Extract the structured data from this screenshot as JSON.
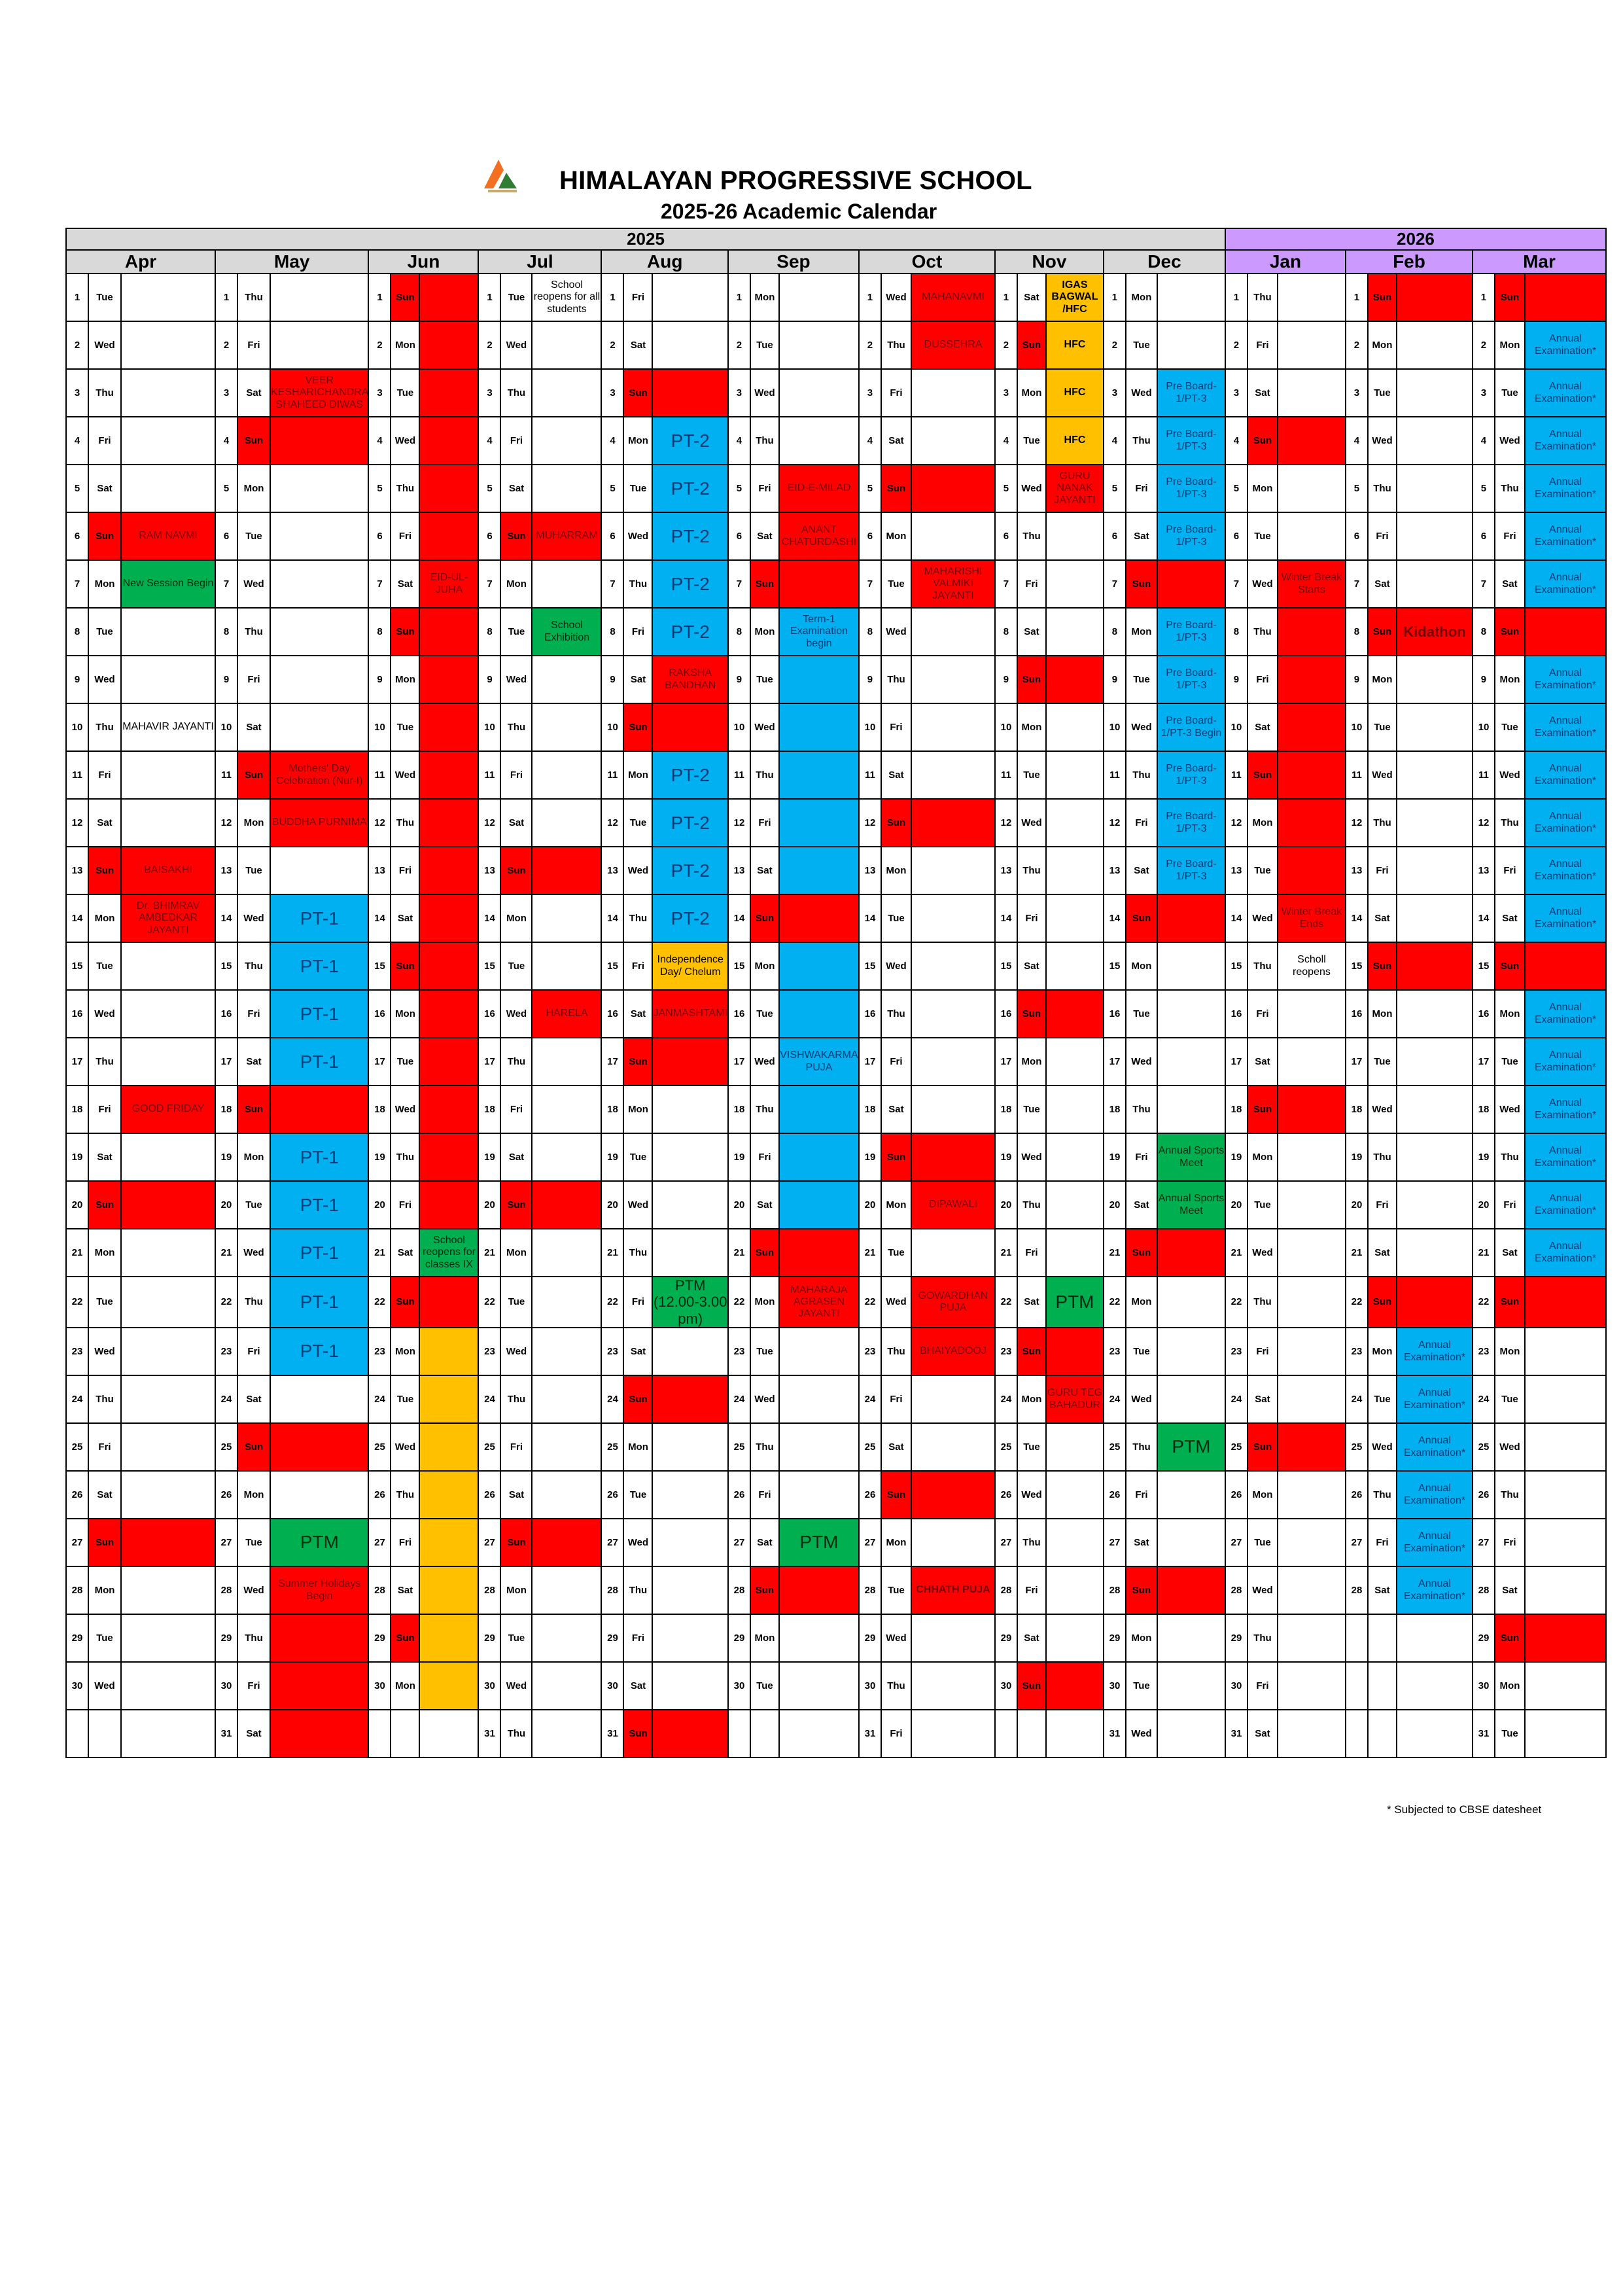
{
  "header": {
    "title": "HIMALAYAN PROGRESSIVE SCHOOL",
    "subtitle": "2025-26 Academic Calendar",
    "logo_icon": "school-logo-icon"
  },
  "colors": {
    "holiday_red": "#ff0000",
    "exam_blue": "#00b0f0",
    "event_green": "#00b050",
    "orange": "#ffc000",
    "header_grey": "#d9d9d9",
    "header_2026": "#cc99ff"
  },
  "years": [
    {
      "label": "2025",
      "months": 9
    },
    {
      "label": "2026",
      "months": 3
    }
  ],
  "months": [
    {
      "name": "Apr",
      "first_dow": 2,
      "days": 30,
      "events": {
        "6": {
          "t": "RAM NAVMI",
          "c": "red"
        },
        "7": {
          "t": "New Session Begin",
          "c": "green"
        },
        "10": {
          "t": "MAHAVIR JAYANTI",
          "c": ""
        },
        "13": {
          "t": "BAISAKHI",
          "c": "red"
        },
        "14": {
          "t": "Dr. BHIMRAV AMBEDKAR JAYANTI",
          "c": "red"
        },
        "18": {
          "t": "GOOD FRIDAY",
          "c": "red"
        },
        "20": {
          "t": "",
          "c": "red"
        },
        "27": {
          "t": "",
          "c": "red"
        }
      }
    },
    {
      "name": "May",
      "first_dow": 4,
      "days": 31,
      "events": {
        "3": {
          "t": "VEER KESHARICHANDRA SHAHEED DIWAS",
          "c": "red"
        },
        "4": {
          "t": "",
          "c": "red"
        },
        "11": {
          "t": "Mothers' Day Celebration (Nur-I)",
          "c": "red"
        },
        "12": {
          "t": "BUDDHA PURNIMA",
          "c": "red"
        },
        "14": {
          "t": "PT-1",
          "c": "blue",
          "big": true
        },
        "15": {
          "t": "PT-1",
          "c": "blue",
          "big": true
        },
        "16": {
          "t": "PT-1",
          "c": "blue",
          "big": true
        },
        "17": {
          "t": "PT-1",
          "c": "blue",
          "big": true
        },
        "18": {
          "t": "",
          "c": "red"
        },
        "19": {
          "t": "PT-1",
          "c": "blue",
          "big": true
        },
        "20": {
          "t": "PT-1",
          "c": "blue",
          "big": true
        },
        "21": {
          "t": "PT-1",
          "c": "blue",
          "big": true
        },
        "22": {
          "t": "PT-1",
          "c": "blue",
          "big": true
        },
        "23": {
          "t": "PT-1",
          "c": "blue",
          "big": true
        },
        "25": {
          "t": "",
          "c": "red"
        },
        "27": {
          "t": "PTM",
          "c": "green",
          "big": true
        },
        "28": {
          "t": "Summer Holidays Begin",
          "c": "red"
        },
        "29": {
          "t": "",
          "c": "red"
        },
        "30": {
          "t": "",
          "c": "red"
        },
        "31": {
          "t": "",
          "c": "red"
        }
      }
    },
    {
      "name": "Jun",
      "first_dow": 0,
      "days": 30,
      "events": {
        "1": {
          "t": "",
          "c": "red"
        },
        "2": {
          "t": "",
          "c": "red"
        },
        "3": {
          "t": "",
          "c": "red"
        },
        "4": {
          "t": "",
          "c": "red"
        },
        "5": {
          "t": "",
          "c": "red"
        },
        "6": {
          "t": "",
          "c": "red"
        },
        "7": {
          "t": "EID-UL-JUHA",
          "c": "red"
        },
        "8": {
          "t": "",
          "c": "red"
        },
        "9": {
          "t": "",
          "c": "red"
        },
        "10": {
          "t": "",
          "c": "red"
        },
        "11": {
          "t": "",
          "c": "red"
        },
        "12": {
          "t": "",
          "c": "red"
        },
        "13": {
          "t": "",
          "c": "red"
        },
        "14": {
          "t": "",
          "c": "red"
        },
        "15": {
          "t": "",
          "c": "red"
        },
        "16": {
          "t": "",
          "c": "red"
        },
        "17": {
          "t": "",
          "c": "red"
        },
        "18": {
          "t": "",
          "c": "red"
        },
        "19": {
          "t": "",
          "c": "red"
        },
        "20": {
          "t": "",
          "c": "red"
        },
        "21": {
          "t": "School reopens for classes IX",
          "c": "green"
        },
        "22": {
          "t": "",
          "c": "red"
        },
        "23": {
          "t": "",
          "c": "orange"
        },
        "24": {
          "t": "",
          "c": "orange"
        },
        "25": {
          "t": "",
          "c": "orange"
        },
        "26": {
          "t": "",
          "c": "orange"
        },
        "27": {
          "t": "",
          "c": "orange"
        },
        "28": {
          "t": "",
          "c": "orange"
        },
        "29": {
          "t": "",
          "c": "orange"
        },
        "30": {
          "t": "",
          "c": "orange"
        }
      }
    },
    {
      "name": "Jul",
      "first_dow": 2,
      "days": 31,
      "events": {
        "1": {
          "t": "School reopens for all students",
          "c": ""
        },
        "6": {
          "t": "MUHARRAM",
          "c": "red"
        },
        "8": {
          "t": "School Exhibition",
          "c": "green"
        },
        "13": {
          "t": "",
          "c": "red"
        },
        "16": {
          "t": "HARELA",
          "c": "red"
        },
        "20": {
          "t": "",
          "c": "red"
        },
        "27": {
          "t": "",
          "c": "red"
        }
      }
    },
    {
      "name": "Aug",
      "first_dow": 5,
      "days": 31,
      "events": {
        "3": {
          "t": "",
          "c": "red"
        },
        "4": {
          "t": "PT-2",
          "c": "blue",
          "big": true
        },
        "5": {
          "t": "PT-2",
          "c": "blue",
          "big": true
        },
        "6": {
          "t": "PT-2",
          "c": "blue",
          "big": true
        },
        "7": {
          "t": "PT-2",
          "c": "blue",
          "big": true
        },
        "8": {
          "t": "PT-2",
          "c": "blue",
          "big": true
        },
        "9": {
          "t": "RAKSHA BANDHAN",
          "c": "red"
        },
        "10": {
          "t": "",
          "c": "red"
        },
        "11": {
          "t": "PT-2",
          "c": "blue",
          "big": true
        },
        "12": {
          "t": "PT-2",
          "c": "blue",
          "big": true
        },
        "13": {
          "t": "PT-2",
          "c": "blue",
          "big": true
        },
        "14": {
          "t": "PT-2",
          "c": "blue",
          "big": true
        },
        "15": {
          "t": "Independence Day/ Chelum",
          "c": "orange"
        },
        "16": {
          "t": "JANMASHTAMI",
          "c": "red"
        },
        "17": {
          "t": "",
          "c": "red"
        },
        "22": {
          "t": "PTM (12.00-3.00 pm)",
          "c": "green",
          "ptm": true
        },
        "24": {
          "t": "",
          "c": "red"
        },
        "31": {
          "t": "",
          "c": "red"
        }
      }
    },
    {
      "name": "Sep",
      "first_dow": 1,
      "days": 30,
      "events": {
        "5": {
          "t": "EID-E-MILAD",
          "c": "red"
        },
        "6": {
          "t": "ANANT CHATURDASHI",
          "c": "red"
        },
        "7": {
          "t": "",
          "c": "red"
        },
        "8": {
          "t": "Term-1 Examination begin",
          "c": "blue"
        },
        "9": {
          "t": "",
          "c": "blue"
        },
        "10": {
          "t": "",
          "c": "blue"
        },
        "11": {
          "t": "",
          "c": "blue"
        },
        "12": {
          "t": "",
          "c": "blue"
        },
        "13": {
          "t": "",
          "c": "blue"
        },
        "14": {
          "t": "",
          "c": "red"
        },
        "15": {
          "t": "",
          "c": "blue"
        },
        "16": {
          "t": "",
          "c": "blue"
        },
        "17": {
          "t": "VISHWAKARMA PUJA",
          "c": "blue"
        },
        "18": {
          "t": "",
          "c": "blue"
        },
        "19": {
          "t": "",
          "c": "blue"
        },
        "20": {
          "t": "",
          "c": "blue"
        },
        "21": {
          "t": "",
          "c": "red"
        },
        "22": {
          "t": "MAHARAJA AGRASEN JAYANTI",
          "c": "red"
        },
        "27": {
          "t": "PTM",
          "c": "green",
          "big": true
        },
        "28": {
          "t": "",
          "c": "red"
        }
      }
    },
    {
      "name": "Oct",
      "first_dow": 3,
      "days": 31,
      "events": {
        "1": {
          "t": "MAHANAVMI",
          "c": "red"
        },
        "2": {
          "t": "DUSSEHRA",
          "c": "red"
        },
        "5": {
          "t": "",
          "c": "red"
        },
        "7": {
          "t": "MAHARISHI VALMIKI JAYANTI",
          "c": "red"
        },
        "12": {
          "t": "",
          "c": "red"
        },
        "19": {
          "t": "",
          "c": "red"
        },
        "20": {
          "t": "DIPAWALI",
          "c": "red"
        },
        "22": {
          "t": "GOWARDHAN PUJA",
          "c": "red"
        },
        "23": {
          "t": "BHAIYADOOJ",
          "c": "red"
        },
        "26": {
          "t": "",
          "c": "red"
        },
        "28": {
          "t": "CHHATH PUJA",
          "c": "red",
          "bold": true
        }
      }
    },
    {
      "name": "Nov",
      "first_dow": 6,
      "days": 30,
      "events": {
        "1": {
          "t": "IGAS BAGWAL /HFC",
          "c": "orange",
          "bold": true
        },
        "2": {
          "t": "HFC",
          "c": "orange",
          "bold": true
        },
        "3": {
          "t": "HFC",
          "c": "orange",
          "bold": true
        },
        "4": {
          "t": "HFC",
          "c": "orange",
          "bold": true
        },
        "5": {
          "t": "GURU NANAK JAYANTI",
          "c": "red"
        },
        "9": {
          "t": "",
          "c": "red"
        },
        "16": {
          "t": "",
          "c": "red"
        },
        "22": {
          "t": "PTM",
          "c": "green",
          "big": true
        },
        "23": {
          "t": "",
          "c": "red"
        },
        "24": {
          "t": "GURU TEG BAHADUR",
          "c": "red"
        },
        "30": {
          "t": "",
          "c": "red"
        }
      }
    },
    {
      "name": "Dec",
      "first_dow": 1,
      "days": 31,
      "events": {
        "3": {
          "t": "Pre Board-1/PT-3",
          "c": "blue"
        },
        "4": {
          "t": "Pre Board-1/PT-3",
          "c": "blue"
        },
        "5": {
          "t": "Pre Board-1/PT-3",
          "c": "blue"
        },
        "6": {
          "t": "Pre Board-1/PT-3",
          "c": "blue"
        },
        "7": {
          "t": "",
          "c": "red"
        },
        "8": {
          "t": "Pre Board-1/PT-3",
          "c": "blue"
        },
        "9": {
          "t": "Pre Board-1/PT-3",
          "c": "blue"
        },
        "10": {
          "t": "Pre Board-1/PT-3 Begin",
          "c": "blue"
        },
        "11": {
          "t": "Pre Board-1/PT-3",
          "c": "blue"
        },
        "12": {
          "t": "Pre Board-1/PT-3",
          "c": "blue"
        },
        "13": {
          "t": "Pre Board-1/PT-3",
          "c": "blue"
        },
        "14": {
          "t": "",
          "c": "red"
        },
        "19": {
          "t": "Annual Sports Meet",
          "c": "green"
        },
        "20": {
          "t": "Annual Sports Meet",
          "c": "green"
        },
        "21": {
          "t": "",
          "c": "red"
        },
        "25": {
          "t": "PTM",
          "c": "green",
          "big": true
        },
        "28": {
          "t": "",
          "c": "red"
        }
      }
    },
    {
      "name": "Jan",
      "first_dow": 4,
      "days": 31,
      "y26": true,
      "events": {
        "4": {
          "t": "",
          "c": "red"
        },
        "7": {
          "t": "Winter Break Starts",
          "c": "red"
        },
        "8": {
          "t": "",
          "c": "red"
        },
        "9": {
          "t": "",
          "c": "red"
        },
        "10": {
          "t": "",
          "c": "red"
        },
        "11": {
          "t": "",
          "c": "red"
        },
        "12": {
          "t": "",
          "c": "red"
        },
        "13": {
          "t": "",
          "c": "red"
        },
        "14": {
          "t": "Winter Break Ends",
          "c": "red"
        },
        "15": {
          "t": "Scholl reopens",
          "c": ""
        },
        "18": {
          "t": "",
          "c": "red"
        },
        "25": {
          "t": "",
          "c": "red"
        }
      }
    },
    {
      "name": "Feb",
      "first_dow": 0,
      "days": 28,
      "y26": true,
      "events": {
        "1": {
          "t": "",
          "c": "red"
        },
        "8": {
          "t": "Kidathon",
          "c": "red",
          "bold": true,
          "big2": true
        },
        "15": {
          "t": "",
          "c": "red"
        },
        "22": {
          "t": "",
          "c": "red"
        },
        "23": {
          "t": "Annual Examination*",
          "c": "blue"
        },
        "24": {
          "t": "Annual Examination*",
          "c": "blue"
        },
        "25": {
          "t": "Annual Examination*",
          "c": "blue"
        },
        "26": {
          "t": "Annual Examination*",
          "c": "blue"
        },
        "27": {
          "t": "Annual Examination*",
          "c": "blue"
        },
        "28": {
          "t": "Annual Examination*",
          "c": "blue"
        }
      }
    },
    {
      "name": "Mar",
      "first_dow": 0,
      "days": 31,
      "y26": true,
      "events": {
        "1": {
          "t": "",
          "c": "red"
        },
        "2": {
          "t": "Annual Examination*",
          "c": "blue"
        },
        "3": {
          "t": "Annual Examination*",
          "c": "blue"
        },
        "4": {
          "t": "Annual Examination*",
          "c": "blue"
        },
        "5": {
          "t": "Annual Examination*",
          "c": "blue"
        },
        "6": {
          "t": "Annual Examination*",
          "c": "blue"
        },
        "7": {
          "t": "Annual Examination*",
          "c": "blue"
        },
        "8": {
          "t": "",
          "c": "red"
        },
        "9": {
          "t": "Annual Examination*",
          "c": "blue"
        },
        "10": {
          "t": "Annual Examination*",
          "c": "blue"
        },
        "11": {
          "t": "Annual Examination*",
          "c": "blue"
        },
        "12": {
          "t": "Annual Examination*",
          "c": "blue"
        },
        "13": {
          "t": "Annual Examination*",
          "c": "blue"
        },
        "14": {
          "t": "Annual Examination*",
          "c": "blue"
        },
        "15": {
          "t": "",
          "c": "red"
        },
        "16": {
          "t": "Annual Examination*",
          "c": "blue"
        },
        "17": {
          "t": "Annual Examination*",
          "c": "blue"
        },
        "18": {
          "t": "Annual Examination*",
          "c": "blue"
        },
        "19": {
          "t": "Annual Examination*",
          "c": "blue"
        },
        "20": {
          "t": "Annual Examination*",
          "c": "blue"
        },
        "21": {
          "t": "Annual Examination*",
          "c": "blue"
        },
        "22": {
          "t": "",
          "c": "red"
        },
        "29": {
          "t": "",
          "c": "red"
        }
      }
    }
  ],
  "weekdays": [
    "Sun",
    "Mon",
    "Tue",
    "Wed",
    "Thu",
    "Fri",
    "Sat"
  ],
  "footnote": "* Subjected to CBSE datesheet"
}
